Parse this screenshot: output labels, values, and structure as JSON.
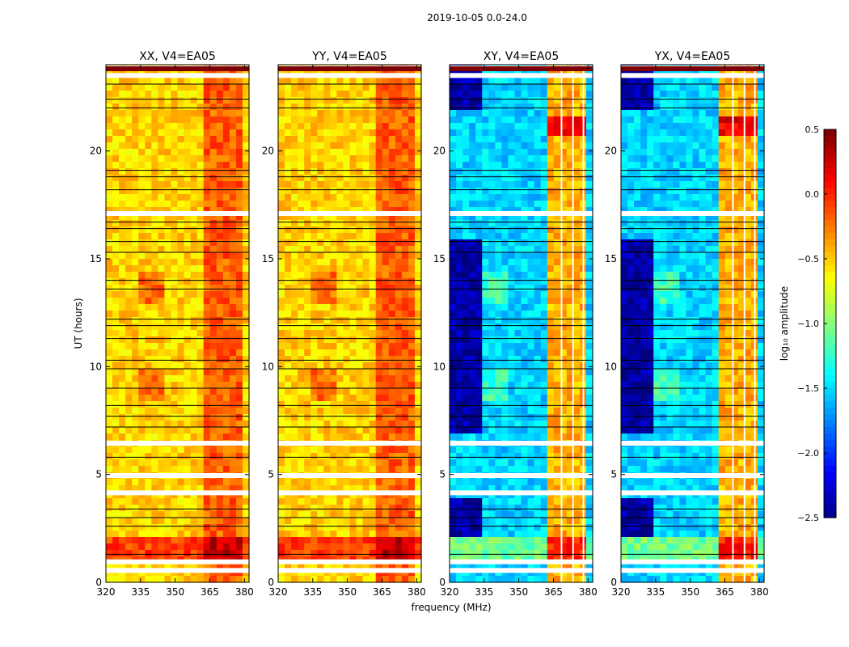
{
  "figure": {
    "suptitle": "2019-10-05 0.0-24.0"
  },
  "colors": {
    "colormap": [
      "#00007f",
      "#0000ff",
      "#007fff",
      "#00ffff",
      "#7fff7f",
      "#ffff00",
      "#ff7f00",
      "#ff0000",
      "#7f0000"
    ]
  },
  "chart_data": [
    {
      "type": "heatmap",
      "title": "XX, V4=EA05",
      "xlabel": "",
      "ylabel": "UT (hours)",
      "xlim": [
        320,
        382
      ],
      "ylim": [
        0,
        24
      ],
      "xticks": [
        "320",
        "335",
        "350",
        "365",
        "380"
      ],
      "yticks": [
        "0",
        "5",
        "10",
        "15",
        "20"
      ],
      "approx_mean_log10_amplitude": -0.5,
      "strong_band_MHz": [
        363,
        380
      ]
    },
    {
      "type": "heatmap",
      "title": "YY, V4=EA05",
      "xlabel": "frequency (MHz)",
      "ylabel": "",
      "xlim": [
        320,
        382
      ],
      "ylim": [
        0,
        24
      ],
      "xticks": [
        "320",
        "335",
        "350",
        "365",
        "380"
      ],
      "yticks": [
        "0",
        "5",
        "10",
        "15",
        "20"
      ],
      "approx_mean_log10_amplitude": -0.5,
      "strong_band_MHz": [
        363,
        380
      ]
    },
    {
      "type": "heatmap",
      "title": "XY, V4=EA05",
      "xlabel": "",
      "ylabel": "",
      "xlim": [
        320,
        382
      ],
      "ylim": [
        0,
        24
      ],
      "xticks": [
        "320",
        "335",
        "350",
        "365",
        "380"
      ],
      "yticks": [
        "0",
        "5",
        "10",
        "15",
        "20"
      ],
      "approx_mean_log10_amplitude": -1.5,
      "strong_band_MHz": [
        363,
        380
      ]
    },
    {
      "type": "heatmap",
      "title": "YX, V4=EA05",
      "xlabel": "",
      "ylabel": "",
      "xlim": [
        320,
        382
      ],
      "ylim": [
        0,
        24
      ],
      "xticks": [
        "320",
        "335",
        "350",
        "365",
        "380"
      ],
      "yticks": [
        "0",
        "5",
        "10",
        "15",
        "20"
      ],
      "approx_mean_log10_amplitude": -1.5,
      "strong_band_MHz": [
        363,
        380
      ]
    }
  ],
  "colorbar": {
    "label": "log₁₀ amplitude",
    "range": [
      -2.5,
      0.5
    ],
    "ticks": [
      "0.5",
      "0.0",
      "−0.5",
      "−1.0",
      "−1.5",
      "−2.0",
      "−2.5"
    ]
  }
}
